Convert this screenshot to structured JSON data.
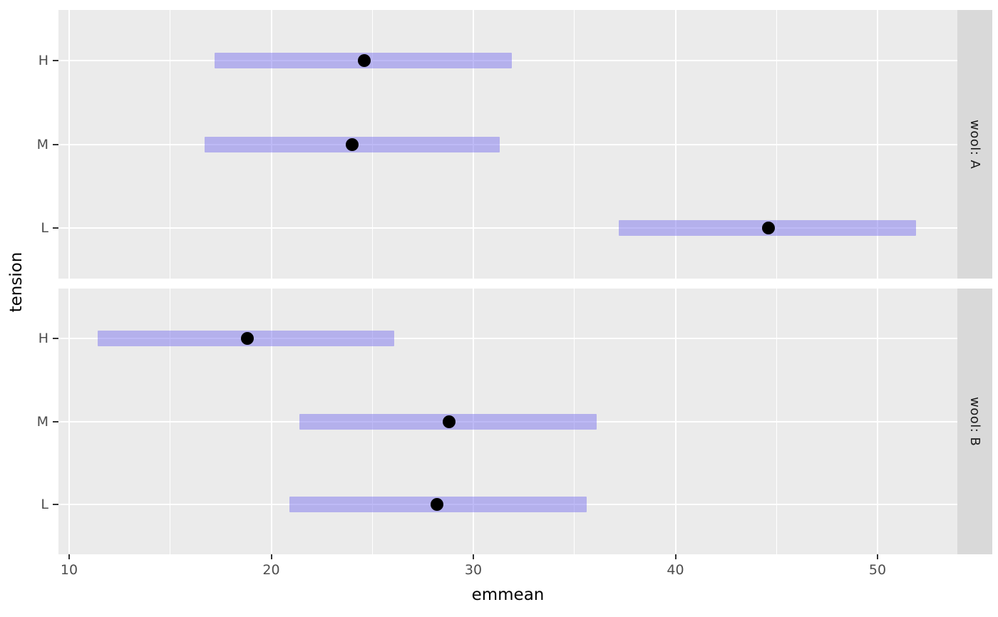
{
  "chart_data": {
    "type": "interval",
    "subtype": "horizontal-confidence-intervals-with-point-estimates",
    "title": "",
    "xlabel": "emmean",
    "ylabel": "tension",
    "xlim": [
      9.47,
      53.95
    ],
    "x_ticks": [
      10,
      20,
      30,
      40,
      50
    ],
    "x_minor_ticks": [
      15,
      25,
      35,
      45
    ],
    "y_categories_top_to_bottom": [
      "H",
      "M",
      "L"
    ],
    "grid": "major-and-minor-white-on-grey",
    "legend_position": "none",
    "facet_strip_position": "right",
    "facets": [
      {
        "label": "wool: A",
        "rows": [
          {
            "category": "H",
            "mean": 24.6,
            "lower": 17.2,
            "upper": 31.9
          },
          {
            "category": "M",
            "mean": 24.0,
            "lower": 16.7,
            "upper": 31.3
          },
          {
            "category": "L",
            "mean": 44.6,
            "lower": 37.2,
            "upper": 51.9
          }
        ]
      },
      {
        "label": "wool: B",
        "rows": [
          {
            "category": "H",
            "mean": 18.8,
            "lower": 11.4,
            "upper": 26.1
          },
          {
            "category": "M",
            "mean": 28.8,
            "lower": 21.4,
            "upper": 36.1
          },
          {
            "category": "L",
            "mean": 28.2,
            "lower": 20.9,
            "upper": 35.6
          }
        ]
      }
    ],
    "colors": {
      "panel_bg": "#ebebeb",
      "strip_bg": "#d9d9d9",
      "strip_text": "#1a1a1a",
      "gridline": "#ffffff",
      "bar_fill": "rgba(125,117,237,0.5)",
      "point": "#000000",
      "tick_label": "#4d4d4d",
      "axis_title": "#000000",
      "tick_mark": "#333333"
    }
  }
}
